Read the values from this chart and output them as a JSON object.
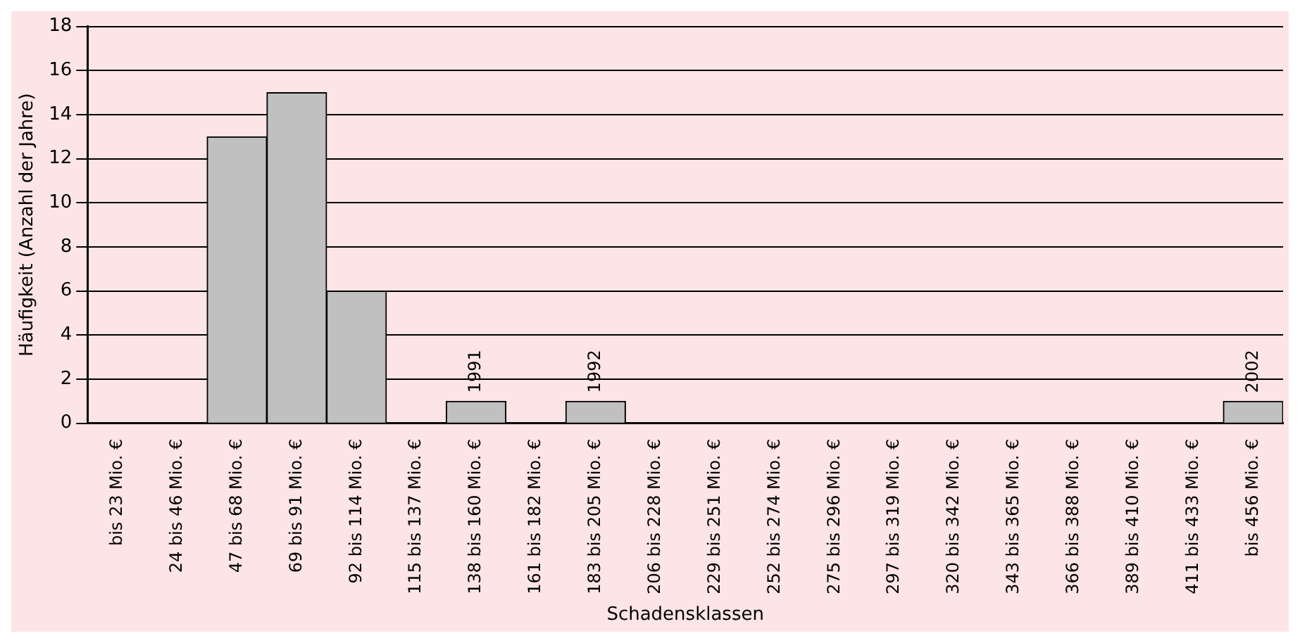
{
  "chart_data": {
    "type": "bar",
    "xlabel": "Schadensklassen",
    "ylabel": "Häufigkeit (Anzahl der Jahre)",
    "categories": [
      "bis 23 Mio. €",
      "24 bis 46 Mio. €",
      "47 bis 68 Mio. €",
      "69 bis 91 Mio. €",
      "92 bis 114 Mio. €",
      "115 bis 137 Mio. €",
      "138 bis 160 Mio. €",
      "161 bis 182 Mio. €",
      "183 bis 205 Mio. €",
      "206 bis 228 Mio. €",
      "229 bis 251 Mio. €",
      "252 bis 274 Mio. €",
      "275 bis 296 Mio. €",
      "297 bis 319 Mio. €",
      "320 bis 342 Mio. €",
      "343 bis 365 Mio. €",
      "366 bis 388 Mio. €",
      "389 bis 410 Mio. €",
      "411 bis 433 Mio. €",
      "bis 456 Mio. €"
    ],
    "values": [
      0,
      0,
      13,
      15,
      6,
      0,
      1,
      0,
      1,
      0,
      0,
      0,
      0,
      0,
      0,
      0,
      0,
      0,
      0,
      1
    ],
    "color": "#c0c0c0",
    "ylim": [
      0,
      18
    ],
    "yticks": [
      0,
      2,
      4,
      6,
      8,
      10,
      12,
      14,
      16,
      18
    ],
    "grid": "y",
    "annotations": [
      {
        "text": "1991",
        "x": "138 bis 160 Mio. €",
        "y": 1
      },
      {
        "text": "1992",
        "x": "183 bis 205 Mio. €",
        "y": 1
      },
      {
        "text": "2002",
        "x": "bis 456 Mio. €",
        "y": 1
      }
    ]
  }
}
